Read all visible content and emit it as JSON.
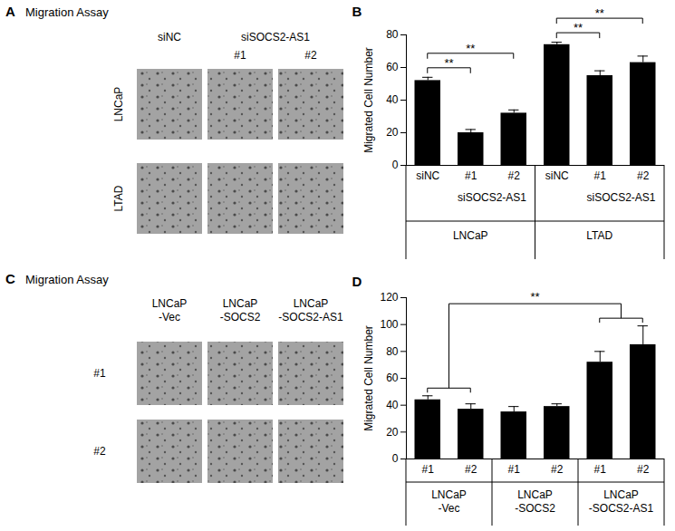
{
  "chart_data": [
    {
      "panel": "A",
      "type": "image_grid",
      "title": "Migration Assay",
      "columns": [
        "siNC",
        "#1",
        "#2"
      ],
      "column_groups": [
        null,
        "siSOCS2-AS1",
        "siSOCS2-AS1"
      ],
      "rows": [
        "LNCaP",
        "LTAD"
      ]
    },
    {
      "panel": "B",
      "type": "bar",
      "categories": [
        "siNC",
        "#1",
        "#2",
        "siNC",
        "#1",
        "#2"
      ],
      "subgroups": [
        null,
        "siSOCS2-AS1",
        "siSOCS2-AS1",
        null,
        "siSOCS2-AS1",
        "siSOCS2-AS1"
      ],
      "groups": [
        "LNCaP",
        "LNCaP",
        "LNCaP",
        "LTAD",
        "LTAD",
        "LTAD"
      ],
      "values": [
        52,
        20,
        32,
        74,
        55,
        63
      ],
      "errors": [
        2,
        2,
        2,
        1.5,
        3,
        4
      ],
      "color": "#000000",
      "y_label": "Migrated Cell Number",
      "ylim": [
        0,
        80
      ],
      "yticks": [
        0,
        20,
        40,
        60,
        80
      ],
      "annotations": [
        {
          "from": 0,
          "to": 1,
          "label": "**"
        },
        {
          "from": 0,
          "to": 2,
          "label": "**"
        },
        {
          "from": 3,
          "to": 4,
          "label": "**"
        },
        {
          "from": 3,
          "to": 5,
          "label": "**"
        }
      ]
    },
    {
      "panel": "C",
      "type": "image_grid",
      "title": "Migration Assay",
      "columns": [
        "LNCaP\n-Vec",
        "LNCaP\n-SOCS2",
        "LNCaP\n-SOCS2-AS1"
      ],
      "column_groups": [
        null,
        null,
        null
      ],
      "rows": [
        "#1",
        "#2"
      ]
    },
    {
      "panel": "D",
      "type": "bar",
      "categories": [
        "#1",
        "#2",
        "#1",
        "#2",
        "#1",
        "#2"
      ],
      "groups": [
        "LNCaP\n-Vec",
        "LNCaP\n-Vec",
        "LNCaP\n-SOCS2",
        "LNCaP\n-SOCS2",
        "LNCaP\n-SOCS2-AS1",
        "LNCaP\n-SOCS2-AS1"
      ],
      "values": [
        44,
        37,
        35,
        39,
        72,
        85
      ],
      "errors": [
        3,
        4,
        4,
        2,
        8,
        14
      ],
      "color": "#000000",
      "y_label": "Migrated Cell Number",
      "ylim": [
        0,
        120
      ],
      "yticks": [
        0,
        20,
        40,
        60,
        80,
        100,
        120
      ],
      "annotations": [
        {
          "from": [
            0,
            1
          ],
          "to": [
            4,
            5
          ],
          "label": "**"
        }
      ]
    }
  ]
}
